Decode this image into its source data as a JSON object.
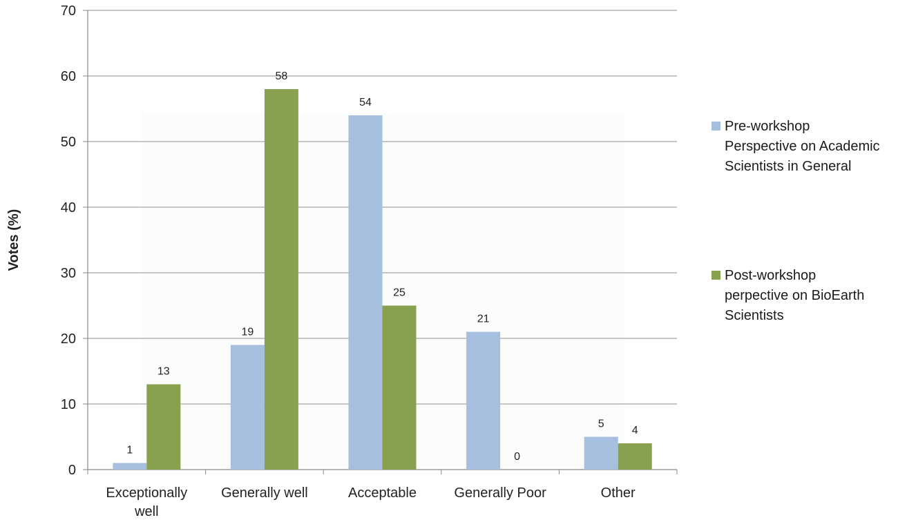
{
  "chart_data": {
    "type": "bar",
    "categories": [
      "Exceptionally well",
      "Generally well",
      "Acceptable",
      "Generally Poor",
      "Other"
    ],
    "series": [
      {
        "name": "Pre-workshop Perspective on Academic Scientists in General",
        "values": [
          1,
          19,
          54,
          21,
          5
        ],
        "color": "#a6bfde"
      },
      {
        "name": "Post-workshop perpective on BioEarth Scientists",
        "values": [
          13,
          58,
          25,
          0,
          4
        ],
        "color": "#88a14e"
      }
    ],
    "data_labels": [
      [
        "1",
        "19",
        "54",
        "21",
        "5"
      ],
      [
        "13",
        "58",
        "25",
        "0",
        "4"
      ]
    ],
    "title": "",
    "xlabel": "",
    "ylabel": "Votes (%)",
    "ylim": [
      0,
      70
    ],
    "yticks": [
      0,
      10,
      20,
      30,
      40,
      50,
      60,
      70
    ],
    "grid": true,
    "legend_position": "right"
  },
  "legend": {
    "items": [
      {
        "lines": "Pre-workshop\nPerspective on Academic\nScientists in General",
        "color": "#a6bfde"
      },
      {
        "lines": "Post-workshop\nperpective on BioEarth\nScientists",
        "color": "#88a14e"
      }
    ]
  }
}
